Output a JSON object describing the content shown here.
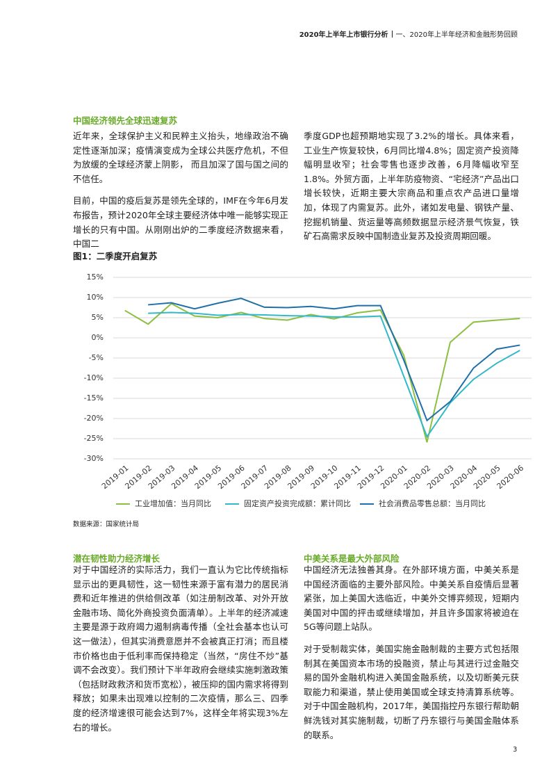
{
  "header": {
    "report": "2020年上半年上市银行分析",
    "section": "一、2020年上半年经济和金融形势回顾"
  },
  "intro": {
    "title": "中国经济领先全球迅速复苏",
    "left_paragraphs": [
      "近年来，全球保护主义和民粹主义抬头，地缘政治不确定性逐渐加深；疫情演变成为全球公共医疗危机，不但为放缓的全球经济蒙上阴影， 而且加深了国与国之间的不信任。",
      "目前，中国的疫后复苏是领先全球的，IMF在今年6月发布报告，预计2020年全球主要经济体中唯一能够实现正增长的只有中国。从刚刚出炉的二季度经济数据来看，中国二"
    ],
    "right_paragraphs": [
      "季度GDP也超预期地实现了3.2%的增长。具体来看，工业生产恢复较快，6月同比增4.8%；固定资产投资降幅明显收窄；社会零售也逐步改善，6月降幅收窄至1.8%。外贸方面，上半年防疫物资、“宅经济”产品出口增长较快，近期主要大宗商品和重点农产品进口量增加，体现了内需复苏。此外，诸如发电量、钢铁产量、挖掘机销量、货运量等高频数据显示经济景气恢复，铁矿石高需求反映中国制造业复苏及投资周期回暖。"
    ]
  },
  "chart_data": {
    "type": "line",
    "title": "图1：二季度开启复苏",
    "categories": [
      "2019-01",
      "2019-02",
      "2019-03",
      "2019-04",
      "2019-05",
      "2019-06",
      "2019-07",
      "2019-08",
      "2019-09",
      "2019-10",
      "2019-11",
      "2019-12",
      "2020-01",
      "2020-02",
      "2020-03",
      "2020-04",
      "2020-05",
      "2020-06"
    ],
    "series": [
      {
        "name": "工业增加值：当月同比",
        "color": "#8cbf3f",
        "values": [
          6.8,
          3.4,
          8.5,
          5.4,
          5.0,
          6.3,
          4.8,
          4.4,
          5.8,
          4.7,
          6.2,
          6.9,
          -4.3,
          -25.9,
          -1.1,
          3.9,
          4.4,
          4.8
        ]
      },
      {
        "name": "固定资产投资完成额：累计同比",
        "color": "#33b8c9",
        "values": [
          null,
          6.1,
          6.3,
          6.1,
          5.6,
          5.8,
          5.7,
          5.5,
          5.4,
          5.2,
          5.2,
          5.4,
          -9.5,
          -24.5,
          -16.1,
          -10.3,
          -6.3,
          -3.1
        ]
      },
      {
        "name": "社会消费品零售总额：当月同比",
        "color": "#1f6fa8",
        "values": [
          null,
          8.2,
          8.7,
          7.2,
          8.6,
          9.8,
          7.6,
          7.5,
          7.8,
          7.2,
          8.0,
          8.0,
          -5.5,
          -20.5,
          -15.8,
          -7.5,
          -2.8,
          -1.8
        ]
      }
    ],
    "ylim": [
      -30,
      15
    ],
    "yticks": [
      {
        "value": -30,
        "label": "-30%"
      },
      {
        "value": -25,
        "label": "-25%"
      },
      {
        "value": -20,
        "label": "-20%"
      },
      {
        "value": -15,
        "label": "-15%"
      },
      {
        "value": -10,
        "label": "-10%"
      },
      {
        "value": -5,
        "label": "-5%"
      },
      {
        "value": 0,
        "label": "0%"
      },
      {
        "value": 5,
        "label": "5%"
      },
      {
        "value": 10,
        "label": "10%"
      },
      {
        "value": 15,
        "label": "15%"
      }
    ],
    "grid": true,
    "legend": "bottom",
    "source": "数据来源：国家统计局"
  },
  "resilience": {
    "title": "潜在韧性助力经济增长",
    "paragraphs": [
      "对于中国经济的实际活力，我们一直认为它比传统指标显示出的更具韧性，这一韧性来源于富有潜力的居民消费和近年推进的供给侧改革（如注册制改革、对外开放金融市场、简化外商投资负面清单）。上半年的经济减速主要是源于政府竭力遏制病毒传播（全社会基本也认可这一做法），但其实消费意愿并不会被真正打消；而且楼市价格也由于低利率而保持稳定（当然，“房住不炒”基调不会改变）。我们预计下半年政府会继续实施刺激政策（包括财政救济和货币宽松），被压抑的国内需求将得到释放；如果未出现难以控制的二次疫情，那么三、四季度的经济增速很可能会达到7%，这样全年将实现3%左右的增长。"
    ]
  },
  "risk": {
    "title": "中美关系是最大外部风险",
    "paragraphs": [
      "中国经济无法独善其身。在外部环境方面，中美关系是中国经济面临的主要外部风险。中美关系自疫情后显著紧张，加上美国大选临近，中美外交博弈频现，短期内美国对中国的抨击或继续增加，并且许多国家将被迫在5G等问题上站队。",
      "对于受制裁实体，美国实施金融制裁的主要方式包括限制其在美国资本市场的投融资，禁止与其进行过金融交易的国外金融机构进入美国金融系统，以及切断美元获取能力和渠道，禁止使用美国或全球支持清算系统等。对于中国金融机构，2017年，美国指控丹东银行帮助朝鲜洗钱对其实施制裁，切断了丹东银行与美国金融体系的联系。"
    ]
  },
  "page_number": "3"
}
